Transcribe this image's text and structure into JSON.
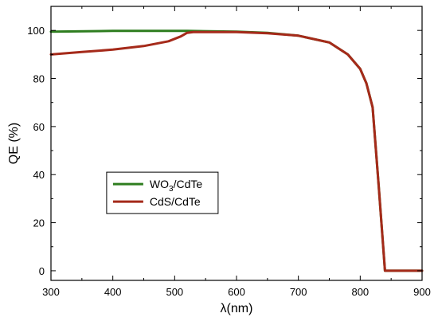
{
  "chart_data": {
    "type": "line",
    "xlabel": "λ(nm)",
    "ylabel": "QE (%)",
    "xlim": [
      300,
      900
    ],
    "ylim": [
      -4,
      110
    ],
    "xticks": [
      300,
      400,
      500,
      600,
      700,
      800,
      900
    ],
    "yticks": [
      0,
      20,
      40,
      60,
      80,
      100
    ],
    "grid": false,
    "legend_position": "center-left",
    "series": [
      {
        "name": "WO3/CdTe",
        "legend_main": "WO",
        "legend_sub": "3",
        "legend_rest": "/CdTe",
        "color": "#2e7d1f",
        "x": [
          300,
          400,
          500,
          520,
          600,
          650,
          700,
          750,
          780,
          800,
          810,
          820,
          830,
          840,
          900
        ],
        "y": [
          99.5,
          99.8,
          99.8,
          99.8,
          99.5,
          99.0,
          97.8,
          95.0,
          90.0,
          84.0,
          78.0,
          68.0,
          35.0,
          0.0,
          0.0
        ]
      },
      {
        "name": "CdS/CdTe",
        "legend_main": "CdS/CdTe",
        "legend_sub": "",
        "legend_rest": "",
        "color": "#a52a1a",
        "x": [
          300,
          350,
          400,
          450,
          490,
          510,
          520,
          530,
          600,
          650,
          700,
          750,
          780,
          800,
          810,
          820,
          830,
          840,
          900
        ],
        "y": [
          90.0,
          91.0,
          92.0,
          93.5,
          95.5,
          97.5,
          99.0,
          99.3,
          99.3,
          98.8,
          97.8,
          95.0,
          90.0,
          84.0,
          78.0,
          68.0,
          35.0,
          0.0,
          0.0
        ]
      }
    ]
  }
}
